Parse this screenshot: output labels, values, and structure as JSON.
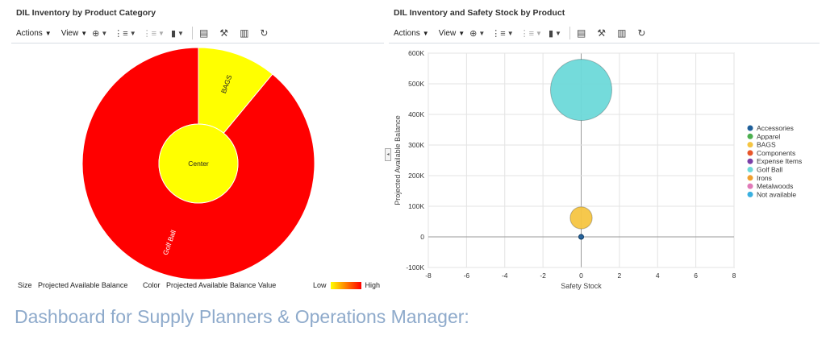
{
  "caption": "Dashboard for Supply Planners & Operations Manager:",
  "toolbar": {
    "actions_label": "Actions",
    "view_label": "View",
    "caret": "▼"
  },
  "left_panel": {
    "title": "DIL Inventory by Product Category",
    "size_label": "Size",
    "size_value": "Projected Available Balance",
    "color_label": "Color",
    "color_value": "Projected Available Balance Value",
    "scale_low": "Low",
    "scale_high": "High",
    "center_label": "Center",
    "colors": {
      "high": "#ff0000",
      "low": "#ffff00"
    }
  },
  "right_panel": {
    "title": "DIL Inventory and Safety Stock by Product"
  },
  "chart_data": [
    {
      "type": "sunburst",
      "center": "Center",
      "slices": [
        {
          "label": "BAGS",
          "share": 0.11,
          "color": "#ffff00"
        },
        {
          "label": "Golf Ball",
          "share": 0.89,
          "color": "#ff0000"
        }
      ]
    },
    {
      "type": "scatter",
      "subtype": "bubble",
      "xlabel": "Safety Stock",
      "ylabel": "Projected Available Balance",
      "xlim": [
        -8,
        8
      ],
      "ylim": [
        -100000,
        600000
      ],
      "x_ticks": [
        "-8",
        "-6",
        "-4",
        "-2",
        "0",
        "2",
        "4",
        "6",
        "8"
      ],
      "y_ticks": [
        "-100K",
        "0",
        "100K",
        "200K",
        "300K",
        "400K",
        "500K",
        "600K"
      ],
      "grid": true,
      "legend_position": "right",
      "legend": [
        {
          "name": "Accessories",
          "color": "#1f5f9a"
        },
        {
          "name": "Apparel",
          "color": "#4caf50"
        },
        {
          "name": "BAGS",
          "color": "#f5c542"
        },
        {
          "name": "Components",
          "color": "#e8562a"
        },
        {
          "name": "Expense Items",
          "color": "#7a3fa8"
        },
        {
          "name": "Golf Ball",
          "color": "#6dd9d9"
        },
        {
          "name": "Irons",
          "color": "#f0a030"
        },
        {
          "name": "Metalwoods",
          "color": "#e07ab8"
        },
        {
          "name": "Not available",
          "color": "#3ab0e0"
        }
      ],
      "series": [
        {
          "name": "Golf Ball",
          "x": 0,
          "y": 480000,
          "size": 480000,
          "color": "#6dd9d9"
        },
        {
          "name": "BAGS",
          "x": 0,
          "y": 62000,
          "size": 62000,
          "color": "#f5c542"
        },
        {
          "name": "Accessories",
          "x": 0,
          "y": 0,
          "size": 2000,
          "color": "#1f5f9a"
        }
      ]
    }
  ]
}
